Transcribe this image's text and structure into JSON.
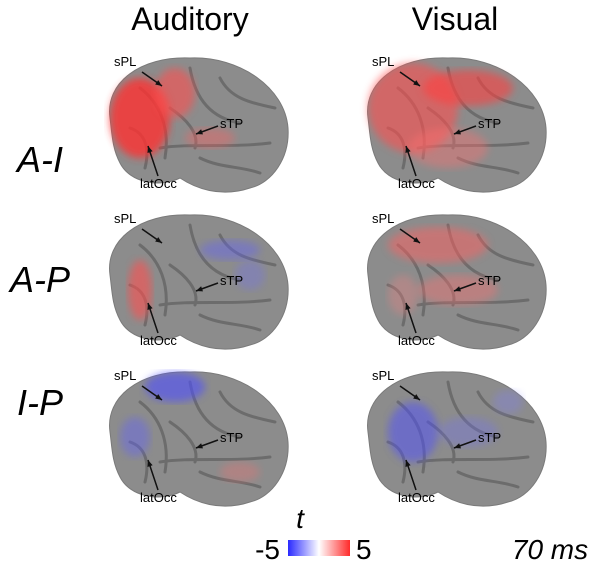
{
  "columns": [
    "Auditory",
    "Visual"
  ],
  "rows": [
    {
      "label": "A-I",
      "panels": [
        {
          "annotations": [
            "sPL",
            "sTP",
            "latOcc"
          ]
        },
        {
          "annotations": [
            "sPL",
            "sTP",
            "latOcc"
          ]
        }
      ]
    },
    {
      "label": "A-P",
      "panels": [
        {
          "annotations": [
            "sPL",
            "sTP",
            "latOcc"
          ]
        },
        {
          "annotations": [
            "sPL",
            "sTP",
            "latOcc"
          ]
        }
      ]
    },
    {
      "label": "I-P",
      "panels": [
        {
          "annotations": [
            "sPL",
            "sTP",
            "latOcc"
          ]
        },
        {
          "annotations": [
            "sPL",
            "sTP",
            "latOcc"
          ]
        }
      ]
    }
  ],
  "colorbar": {
    "label": "t",
    "ticks": [
      -5,
      5
    ]
  },
  "time_label": "70 ms"
}
